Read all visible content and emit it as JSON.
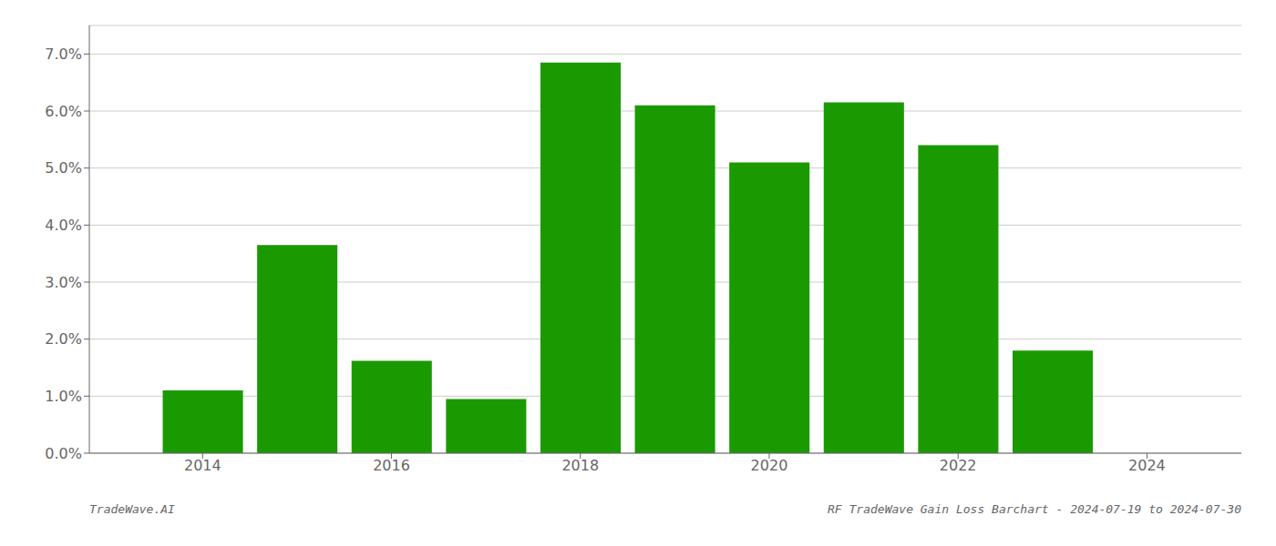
{
  "chart_data": {
    "type": "bar",
    "x": [
      2014,
      2015,
      2016,
      2017,
      2018,
      2019,
      2020,
      2021,
      2022,
      2023
    ],
    "values": [
      0.011,
      0.0365,
      0.0162,
      0.0095,
      0.0685,
      0.061,
      0.051,
      0.0615,
      0.054,
      0.018
    ],
    "color": "#1a9a00",
    "xlim": [
      2012.8,
      2025.0
    ],
    "xticks": [
      2014,
      2016,
      2018,
      2020,
      2022,
      2024
    ],
    "ylim": [
      0,
      0.075
    ],
    "yticks": [
      {
        "value": 0.0,
        "label": "0.0%"
      },
      {
        "value": 0.01,
        "label": "1.0%"
      },
      {
        "value": 0.02,
        "label": "2.0%"
      },
      {
        "value": 0.03,
        "label": "3.0%"
      },
      {
        "value": 0.04,
        "label": "4.0%"
      },
      {
        "value": 0.05,
        "label": "5.0%"
      },
      {
        "value": 0.06,
        "label": "6.0%"
      },
      {
        "value": 0.07,
        "label": "7.0%"
      }
    ],
    "grid": true,
    "annotations": [
      "TradeWave.AI",
      "RF TradeWave Gain Loss Barchart - 2024-07-19 to 2024-07-30"
    ]
  }
}
